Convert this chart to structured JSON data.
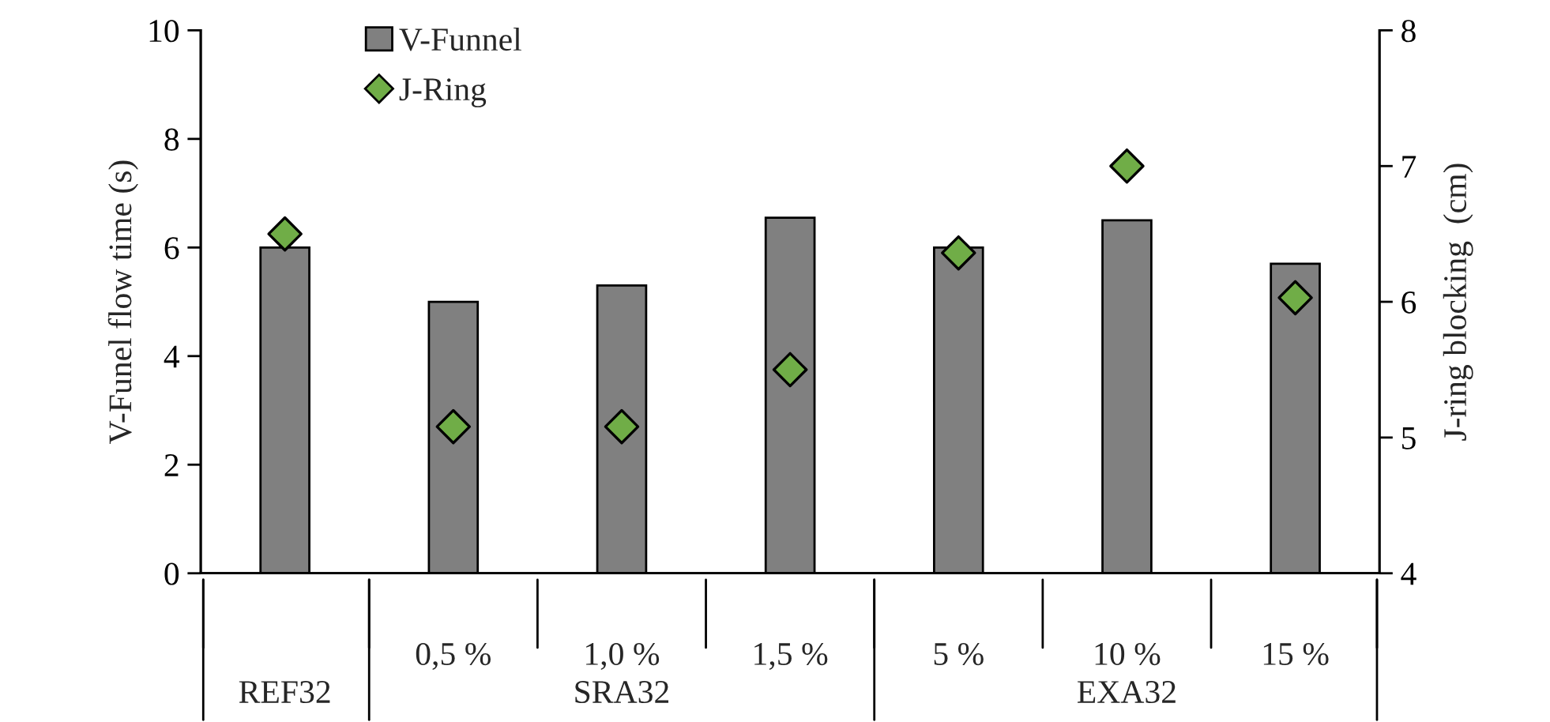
{
  "chart_data": {
    "type": "bar",
    "categories": [
      null,
      "0,5 %",
      "1,0 %",
      "1,5 %",
      "5 %",
      "10 %",
      "15 %"
    ],
    "series": [
      {
        "name": "V-Funnel",
        "color": "#808080",
        "values": [
          6.0,
          5.0,
          5.3,
          6.55,
          6.0,
          6.5,
          5.7
        ]
      },
      {
        "name": "J-Ring",
        "type": "scatter",
        "axis": "y2",
        "color": "#70ad47",
        "marker": "diamond",
        "values": [
          6.5,
          5.08,
          5.08,
          5.5,
          6.36,
          7.0,
          6.03
        ]
      }
    ],
    "ylabel": "V-Funel flow time (s)",
    "y2label": "J-ring blocking  (cm)",
    "ylim": [
      0,
      10
    ],
    "yticks": [
      0,
      2,
      4,
      6,
      8,
      10
    ],
    "y2lim": [
      4,
      8
    ],
    "y2ticks": [
      4,
      5,
      6,
      7,
      8
    ],
    "annotations": [
      "REF32",
      "SRA32",
      "EXA32"
    ],
    "legend": "top left",
    "grid": false
  }
}
